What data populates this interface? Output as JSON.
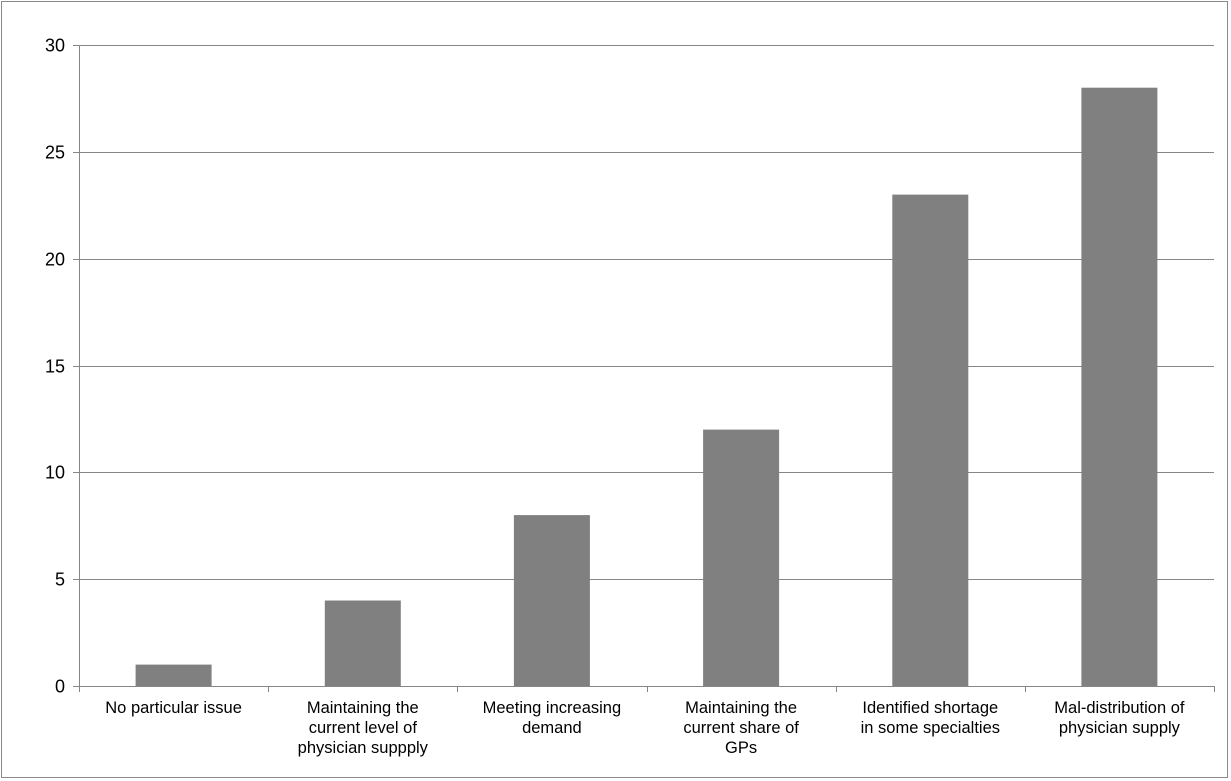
{
  "chart_data": {
    "type": "bar",
    "title": "",
    "xlabel": "",
    "ylabel": "",
    "categories": [
      [
        "No particular issue"
      ],
      [
        "Maintaining the",
        "current level of",
        "physician suppply"
      ],
      [
        "Meeting increasing",
        "demand"
      ],
      [
        "Maintaining the",
        "current share of",
        "GPs"
      ],
      [
        "Identified shortage",
        "in some specialties"
      ],
      [
        "Mal-distribution of",
        "physician supply"
      ]
    ],
    "values": [
      1,
      4,
      8,
      12,
      23,
      28
    ],
    "ylim": [
      0,
      30
    ],
    "yticks": [
      0,
      5,
      10,
      15,
      20,
      25,
      30
    ],
    "grid": true,
    "legend": "none",
    "bar_color": "#808080",
    "grid_color": "#868686"
  }
}
